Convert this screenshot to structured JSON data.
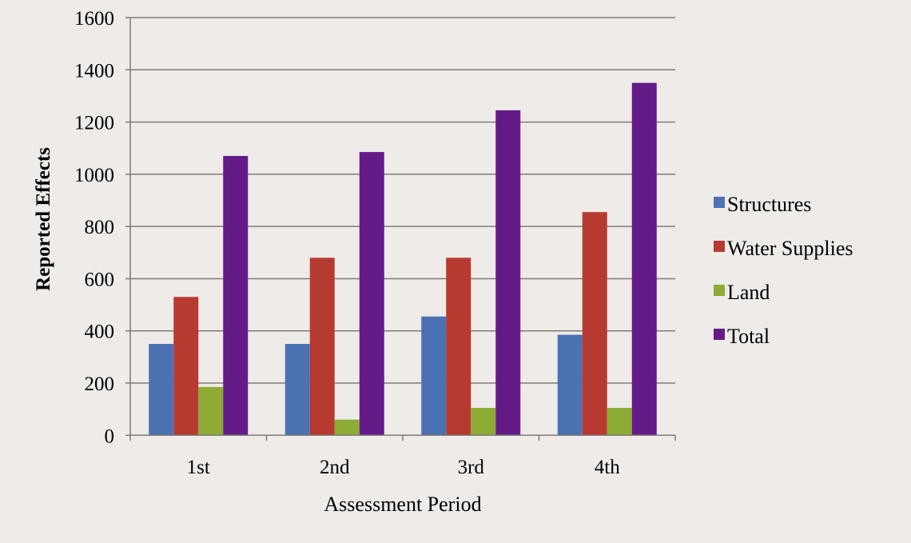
{
  "chart_data": {
    "type": "bar",
    "title": "",
    "xlabel": "Assessment Period",
    "ylabel": "Reported Effects",
    "ylim": [
      0,
      1600
    ],
    "yticks": [
      0,
      200,
      400,
      600,
      800,
      1000,
      1200,
      1400,
      1600
    ],
    "grid": true,
    "legend_position": "right",
    "categories": [
      "1st",
      "2nd",
      "3rd",
      "4th"
    ],
    "series": [
      {
        "name": "Structures",
        "color": "#4a72b3",
        "values": [
          350,
          350,
          455,
          385
        ]
      },
      {
        "name": "Water Supplies",
        "color": "#b73a30",
        "values": [
          530,
          680,
          680,
          855
        ]
      },
      {
        "name": "Land",
        "color": "#8dab35",
        "values": [
          185,
          60,
          105,
          105
        ]
      },
      {
        "name": "Total",
        "color": "#641b88",
        "values": [
          1070,
          1085,
          1245,
          1350
        ]
      }
    ]
  }
}
